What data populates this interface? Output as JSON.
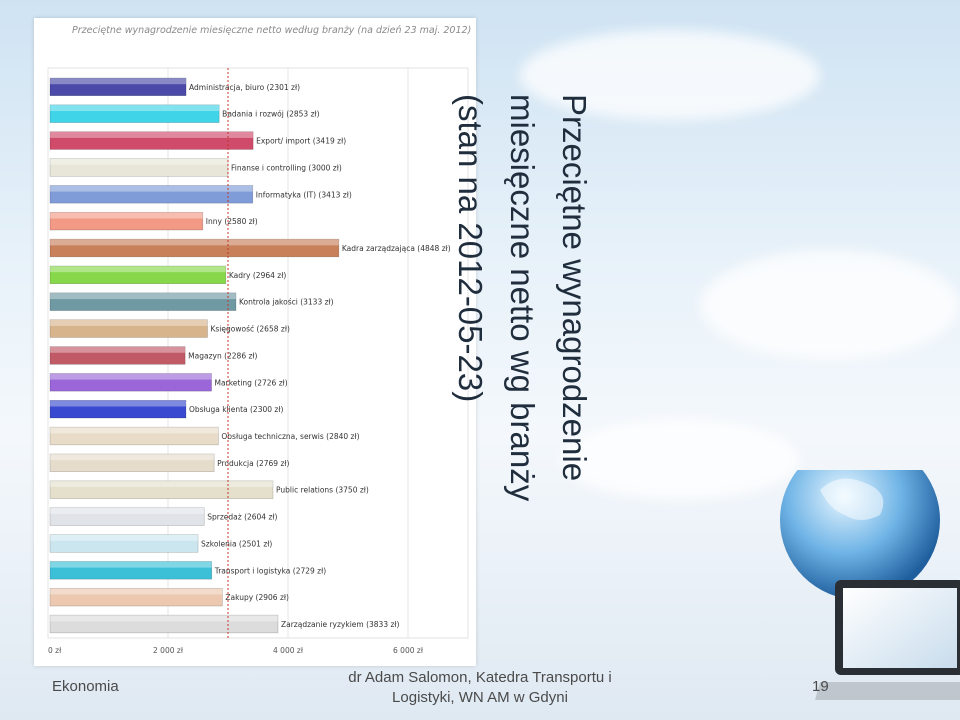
{
  "slide": {
    "title_lines": [
      "Przeciętne wynagrodzenie",
      "miesięczne netto wg branży",
      "(stan na 2012-05-23)"
    ],
    "footer_left": "Ekonomia",
    "footer_center_line1": "dr Adam Salomon, Katedra Transportu i",
    "footer_center_line2": "Logistyki, WN AM w Gdyni",
    "page_number": "19"
  },
  "chart_data": {
    "type": "bar",
    "orientation": "horizontal",
    "title": "Przeciętne wynagrodzenie miesięczne netto według branży (na dzień 23 maj. 2012)",
    "xlim": [
      0,
      7000
    ],
    "x_ticks": [
      0,
      2000,
      4000,
      6000
    ],
    "x_tick_labels": [
      "0 zł",
      "2 000 zł",
      "4 000 zł",
      "6 000 zł"
    ],
    "reference_line": 3000,
    "grid": true,
    "categories": [
      "Administracja, biuro (2301 zł)",
      "Badania i rozwój (2853 zł)",
      "Export/ import (3419 zł)",
      "Finanse i controlling (3000 zł)",
      "Informatyka (IT) (3413 zł)",
      "Inny (2580 zł)",
      "Kadra zarządzająca (4848 zł)",
      "Kadry (2964 zł)",
      "Kontrola jakości (3133 zł)",
      "Księgowość (2658 zł)",
      "Magazyn (2286 zł)",
      "Marketing (2726 zł)",
      "Obsługa klienta (2300 zł)",
      "Obsługa techniczna, serwis (2840 zł)",
      "Produkcja (2769 zł)",
      "Public relations (3750 zł)",
      "Sprzedaż (2604 zł)",
      "Szkolenia (2501 zł)",
      "Transport i logistyka (2729 zł)",
      "Zakupy (2906 zł)",
      "Zarządzanie ryzykiem (3833 zł)"
    ],
    "values": [
      2301,
      2853,
      3419,
      3000,
      3413,
      2580,
      4848,
      2964,
      3133,
      2658,
      2286,
      2726,
      2300,
      2840,
      2769,
      3750,
      2604,
      2501,
      2729,
      2906,
      3833
    ],
    "colors": [
      "#4b4aa8",
      "#3fd4e8",
      "#d04a6a",
      "#e8e6d8",
      "#7f9bd8",
      "#f29a86",
      "#c8805a",
      "#86d84a",
      "#6f9aa4",
      "#d8b48c",
      "#c05a66",
      "#9a66d8",
      "#3a4ad0",
      "#e8dcc8",
      "#e6dccc",
      "#e4e0cc",
      "#e0e4e8",
      "#cce6f0",
      "#3cc0d8",
      "#ecc8b0",
      "#dcdcdc"
    ]
  }
}
